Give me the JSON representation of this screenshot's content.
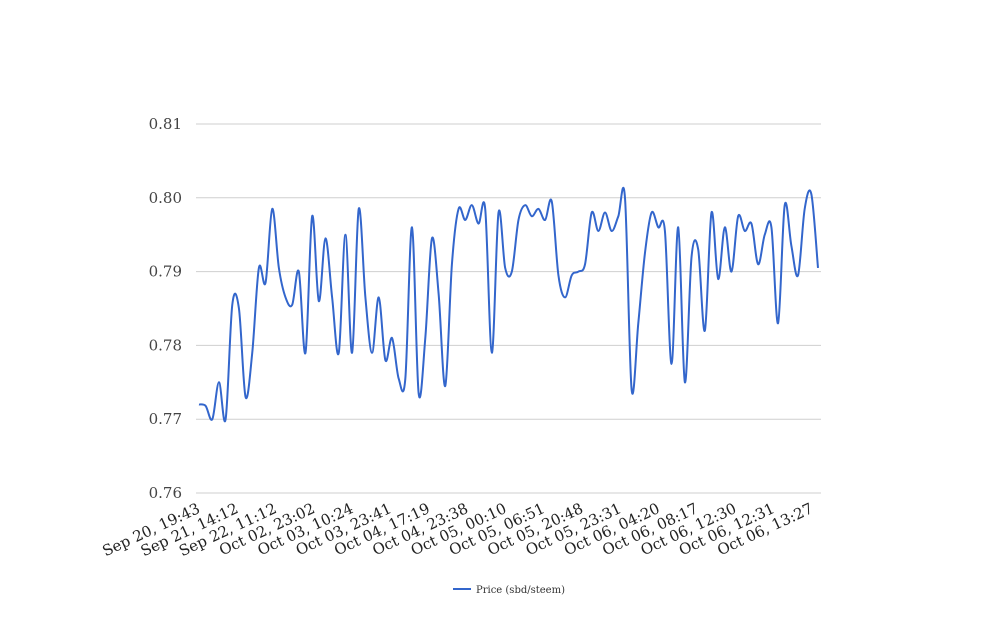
{
  "chart_data": {
    "type": "line",
    "title": "",
    "xlabel": "",
    "ylabel": "",
    "ylim": [
      0.76,
      0.81
    ],
    "y_ticks": [
      "0.76",
      "0.77",
      "0.78",
      "0.79",
      "0.80",
      "0.81"
    ],
    "grid": true,
    "legend_position": "bottom",
    "x_tick_labels": [
      "Sep 20, 19:43",
      "Sep 21, 14:12",
      "Sep 22, 11:12",
      "Oct 02, 23:02",
      "Oct 03, 10:24",
      "Oct 03, 23:41",
      "Oct 04, 17:19",
      "Oct 04, 23:38",
      "Oct 05, 00:10",
      "Oct 05, 06:51",
      "Oct 05, 20:48",
      "Oct 05, 23:31",
      "Oct 06, 04:20",
      "Oct 06, 08:17",
      "Oct 06, 12:30",
      "Oct 06, 12:31",
      "Oct 06, 13:27"
    ],
    "series": [
      {
        "name": "Price (sbd/steem)",
        "color": "#3366cc",
        "values": [
          0.772,
          0.7718,
          0.77,
          0.775,
          0.77,
          0.7855,
          0.785,
          0.773,
          0.779,
          0.7905,
          0.7885,
          0.7985,
          0.7905,
          0.7865,
          0.7855,
          0.79,
          0.779,
          0.7975,
          0.786,
          0.7945,
          0.7865,
          0.779,
          0.795,
          0.779,
          0.7985,
          0.7865,
          0.779,
          0.7865,
          0.778,
          0.781,
          0.7755,
          0.7755,
          0.796,
          0.7735,
          0.781,
          0.7945,
          0.787,
          0.7745,
          0.791,
          0.7985,
          0.797,
          0.799,
          0.7965,
          0.7985,
          0.779,
          0.798,
          0.7905,
          0.79,
          0.797,
          0.799,
          0.7975,
          0.7985,
          0.797,
          0.7995,
          0.7895,
          0.7865,
          0.7895,
          0.79,
          0.791,
          0.798,
          0.7955,
          0.798,
          0.7955,
          0.7975,
          0.8,
          0.774,
          0.783,
          0.7925,
          0.798,
          0.796,
          0.7955,
          0.7775,
          0.796,
          0.775,
          0.792,
          0.793,
          0.782,
          0.798,
          0.789,
          0.796,
          0.79,
          0.7975,
          0.7955,
          0.7965,
          0.791,
          0.795,
          0.796,
          0.783,
          0.799,
          0.7935,
          0.7895,
          0.7985,
          0.8005,
          0.7905
        ]
      }
    ]
  }
}
